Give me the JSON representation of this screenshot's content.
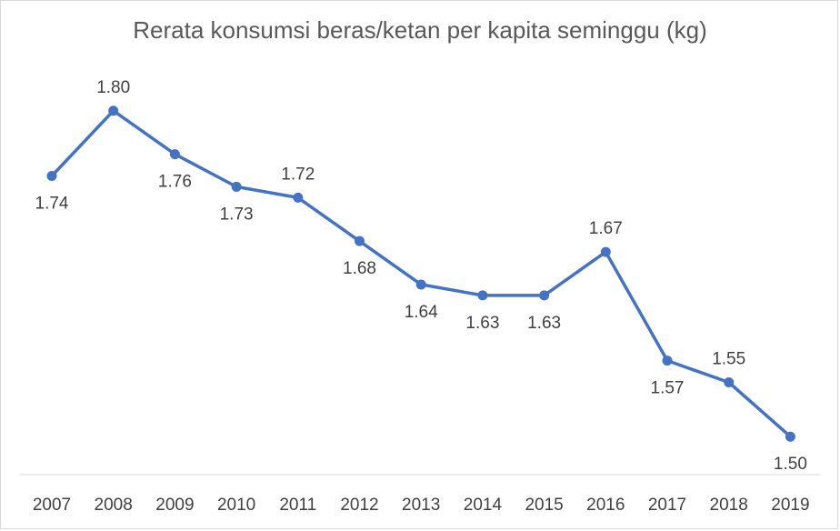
{
  "chart_data": {
    "type": "line",
    "title": "Rerata konsumsi beras/ketan per kapita seminggu (kg)",
    "xlabel": "",
    "ylabel": "",
    "categories": [
      "2007",
      "2008",
      "2009",
      "2010",
      "2011",
      "2012",
      "2013",
      "2014",
      "2015",
      "2016",
      "2017",
      "2018",
      "2019"
    ],
    "series": [
      {
        "values": [
          1.74,
          1.8,
          1.76,
          1.73,
          1.72,
          1.68,
          1.64,
          1.63,
          1.63,
          1.67,
          1.57,
          1.55,
          1.5
        ],
        "labels": [
          "1.74",
          "1.80",
          "1.76",
          "1.73",
          "1.72",
          "1.68",
          "1.64",
          "1.63",
          "1.63",
          "1.67",
          "1.57",
          "1.55",
          "1.50"
        ],
        "label_positions": [
          "below",
          "above",
          "below",
          "below",
          "above",
          "below",
          "below",
          "below",
          "below",
          "above",
          "below",
          "above",
          "below"
        ]
      }
    ],
    "ylim": [
      1.465,
      1.835
    ],
    "grid": false,
    "legend": "none",
    "colors": {
      "line": "#4472c4",
      "text": "#404040",
      "title": "#595959",
      "axis": "#d9d9d9"
    }
  }
}
